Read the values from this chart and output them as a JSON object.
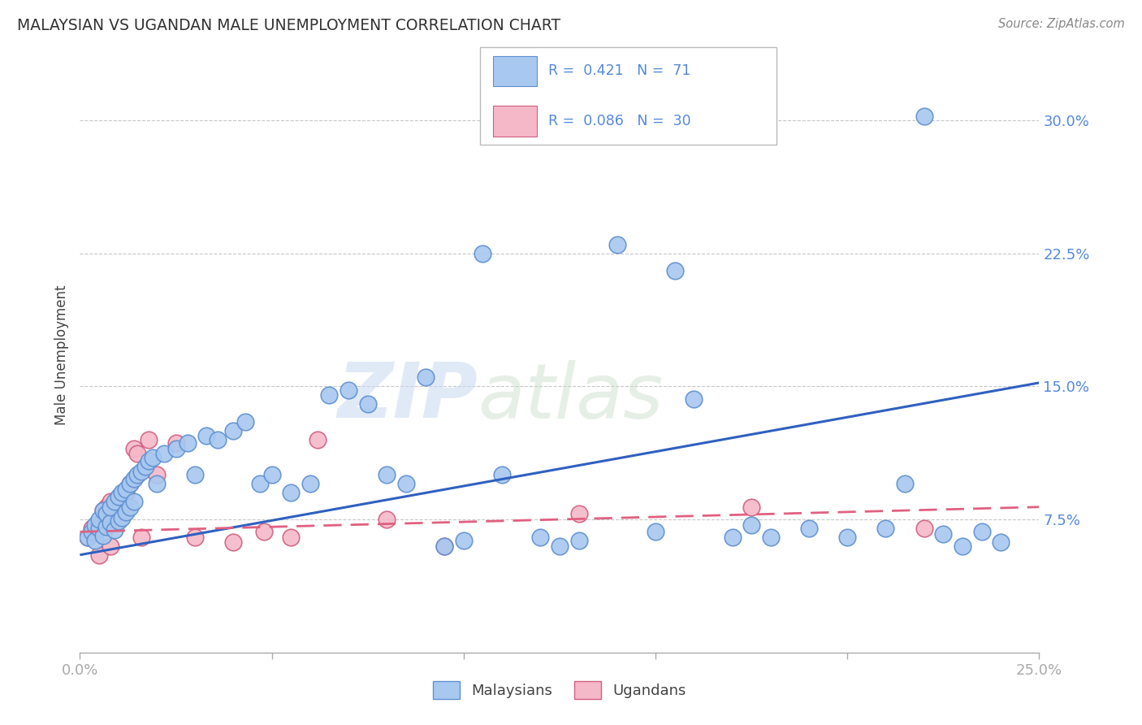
{
  "title": "MALAYSIAN VS UGANDAN MALE UNEMPLOYMENT CORRELATION CHART",
  "source": "Source: ZipAtlas.com",
  "ylabel": "Male Unemployment",
  "malaysia_color": "#a8c8f0",
  "uganda_color": "#f5b8c8",
  "malaysia_edge": "#6090d0",
  "uganda_edge": "#d06080",
  "trend_malaysia_color": "#3060c0",
  "trend_uganda_color": "#e06080",
  "xlim": [
    0.0,
    0.25
  ],
  "ylim": [
    0.0,
    0.335
  ],
  "ytick_vals": [
    0.075,
    0.15,
    0.225,
    0.3
  ],
  "ytick_labels": [
    "7.5%",
    "15.0%",
    "22.5%",
    "30.0%"
  ],
  "xtick_vals": [
    0.0,
    0.05,
    0.1,
    0.15,
    0.2,
    0.25
  ],
  "xtick_labels": [
    "0.0%",
    "",
    "",
    "",
    "",
    "25.0%"
  ],
  "trend_malaysia_x0": 0.0,
  "trend_malaysia_y0": 0.055,
  "trend_malaysia_x1": 0.25,
  "trend_malaysia_y1": 0.152,
  "trend_uganda_x0": 0.0,
  "trend_uganda_y0": 0.068,
  "trend_uganda_x1": 0.25,
  "trend_uganda_y1": 0.082,
  "malaysia_scatter_x": [
    0.002,
    0.003,
    0.004,
    0.004,
    0.005,
    0.005,
    0.006,
    0.006,
    0.007,
    0.007,
    0.008,
    0.008,
    0.009,
    0.009,
    0.01,
    0.01,
    0.011,
    0.011,
    0.012,
    0.012,
    0.013,
    0.013,
    0.014,
    0.014,
    0.015,
    0.016,
    0.017,
    0.018,
    0.019,
    0.02,
    0.022,
    0.025,
    0.028,
    0.03,
    0.033,
    0.036,
    0.04,
    0.043,
    0.047,
    0.05,
    0.055,
    0.06,
    0.065,
    0.07,
    0.075,
    0.08,
    0.085,
    0.09,
    0.095,
    0.1,
    0.105,
    0.11,
    0.12,
    0.125,
    0.13,
    0.14,
    0.15,
    0.155,
    0.16,
    0.17,
    0.175,
    0.18,
    0.19,
    0.2,
    0.21,
    0.215,
    0.22,
    0.225,
    0.23,
    0.235,
    0.24
  ],
  "malaysia_scatter_y": [
    0.065,
    0.068,
    0.063,
    0.072,
    0.07,
    0.075,
    0.066,
    0.08,
    0.071,
    0.078,
    0.073,
    0.082,
    0.069,
    0.085,
    0.074,
    0.088,
    0.076,
    0.09,
    0.079,
    0.092,
    0.082,
    0.095,
    0.085,
    0.098,
    0.1,
    0.102,
    0.105,
    0.108,
    0.11,
    0.095,
    0.112,
    0.115,
    0.118,
    0.1,
    0.122,
    0.12,
    0.125,
    0.13,
    0.095,
    0.1,
    0.09,
    0.095,
    0.145,
    0.148,
    0.14,
    0.1,
    0.095,
    0.155,
    0.06,
    0.063,
    0.225,
    0.1,
    0.065,
    0.06,
    0.063,
    0.23,
    0.068,
    0.215,
    0.143,
    0.065,
    0.072,
    0.065,
    0.07,
    0.065,
    0.07,
    0.095,
    0.302,
    0.067,
    0.06,
    0.068,
    0.062
  ],
  "uganda_scatter_x": [
    0.002,
    0.003,
    0.004,
    0.005,
    0.006,
    0.007,
    0.008,
    0.009,
    0.01,
    0.011,
    0.012,
    0.013,
    0.014,
    0.015,
    0.016,
    0.018,
    0.02,
    0.025,
    0.03,
    0.04,
    0.048,
    0.055,
    0.062,
    0.08,
    0.095,
    0.13,
    0.175,
    0.22,
    0.005,
    0.008
  ],
  "uganda_scatter_y": [
    0.065,
    0.07,
    0.068,
    0.072,
    0.08,
    0.082,
    0.085,
    0.075,
    0.078,
    0.083,
    0.09,
    0.095,
    0.115,
    0.112,
    0.065,
    0.12,
    0.1,
    0.118,
    0.065,
    0.062,
    0.068,
    0.065,
    0.12,
    0.075,
    0.06,
    0.078,
    0.082,
    0.07,
    0.055,
    0.06
  ]
}
